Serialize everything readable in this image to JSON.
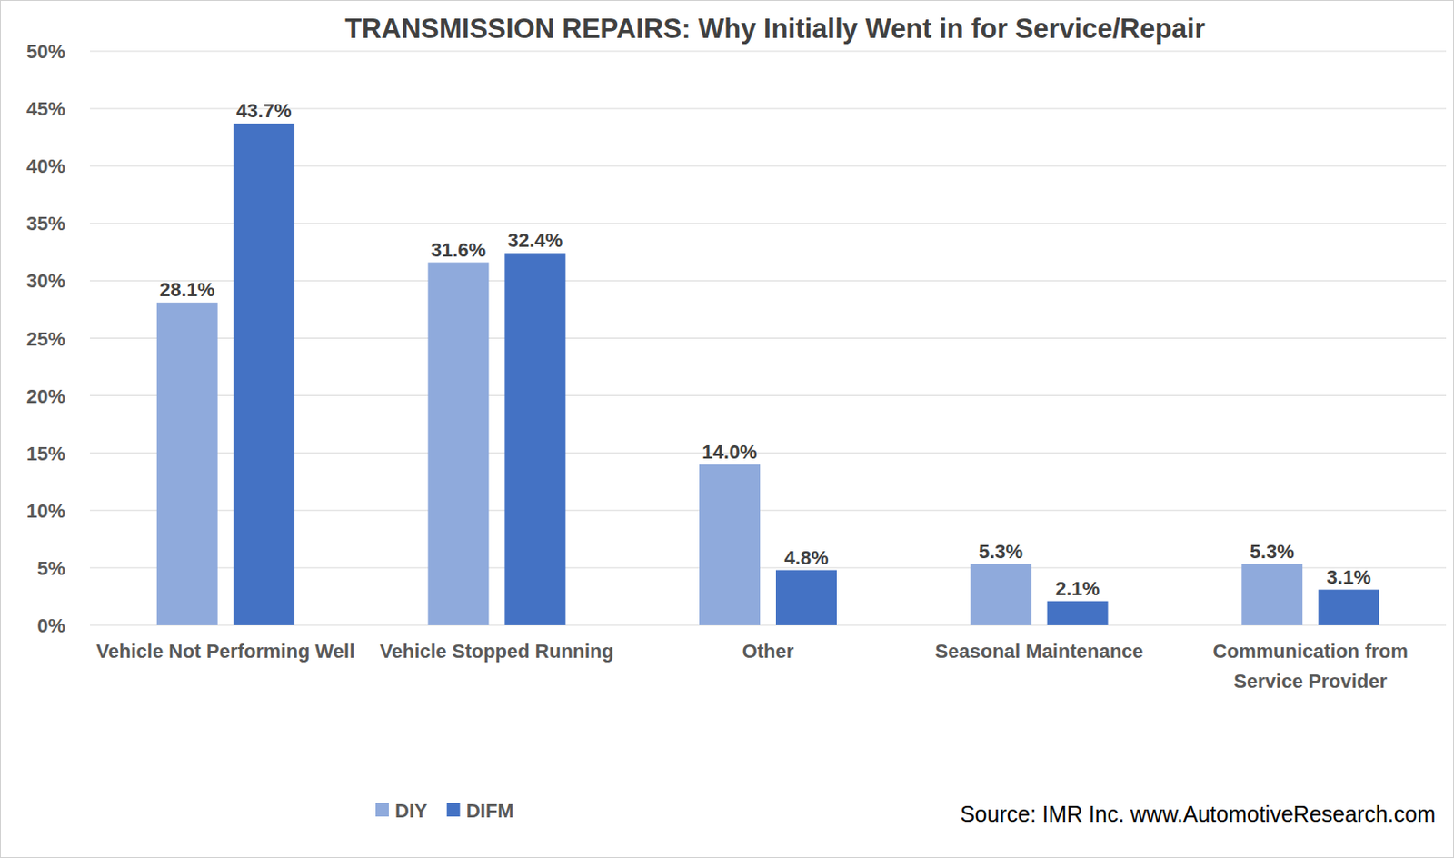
{
  "chart_data": {
    "type": "bar",
    "title": "TRANSMISSION REPAIRS: Why Initially Went in for Service/Repair",
    "source": "Source: IMR Inc. www.AutomotiveResearch.com",
    "categories": [
      "Vehicle Not Performing Well",
      "Vehicle Stopped Running",
      "Other",
      "Seasonal Maintenance",
      "Communication from Service Provider"
    ],
    "series": [
      {
        "name": "DIY",
        "color": "#8faadc",
        "values": [
          28.1,
          31.6,
          14.0,
          5.3,
          5.3
        ],
        "value_labels": [
          "28.1%",
          "31.6%",
          "14.0%",
          "5.3%",
          "5.3%"
        ]
      },
      {
        "name": "DIFM",
        "color": "#4472c4",
        "values": [
          43.7,
          32.4,
          4.8,
          2.1,
          3.1
        ],
        "value_labels": [
          "43.7%",
          "32.4%",
          "4.8%",
          "2.1%",
          "3.1%"
        ]
      }
    ],
    "ylim": [
      0,
      50
    ],
    "yticks": [
      {
        "value": 0,
        "label": "0%"
      },
      {
        "value": 5,
        "label": "5%"
      },
      {
        "value": 10,
        "label": "10%"
      },
      {
        "value": 15,
        "label": "15%"
      },
      {
        "value": 20,
        "label": "20%"
      },
      {
        "value": 25,
        "label": "25%"
      },
      {
        "value": 30,
        "label": "30%"
      },
      {
        "value": 35,
        "label": "35%"
      },
      {
        "value": 40,
        "label": "40%"
      },
      {
        "value": 45,
        "label": "45%"
      },
      {
        "value": 50,
        "label": "50%"
      }
    ],
    "grid": true,
    "data_labels": true,
    "legend": "bottom"
  }
}
